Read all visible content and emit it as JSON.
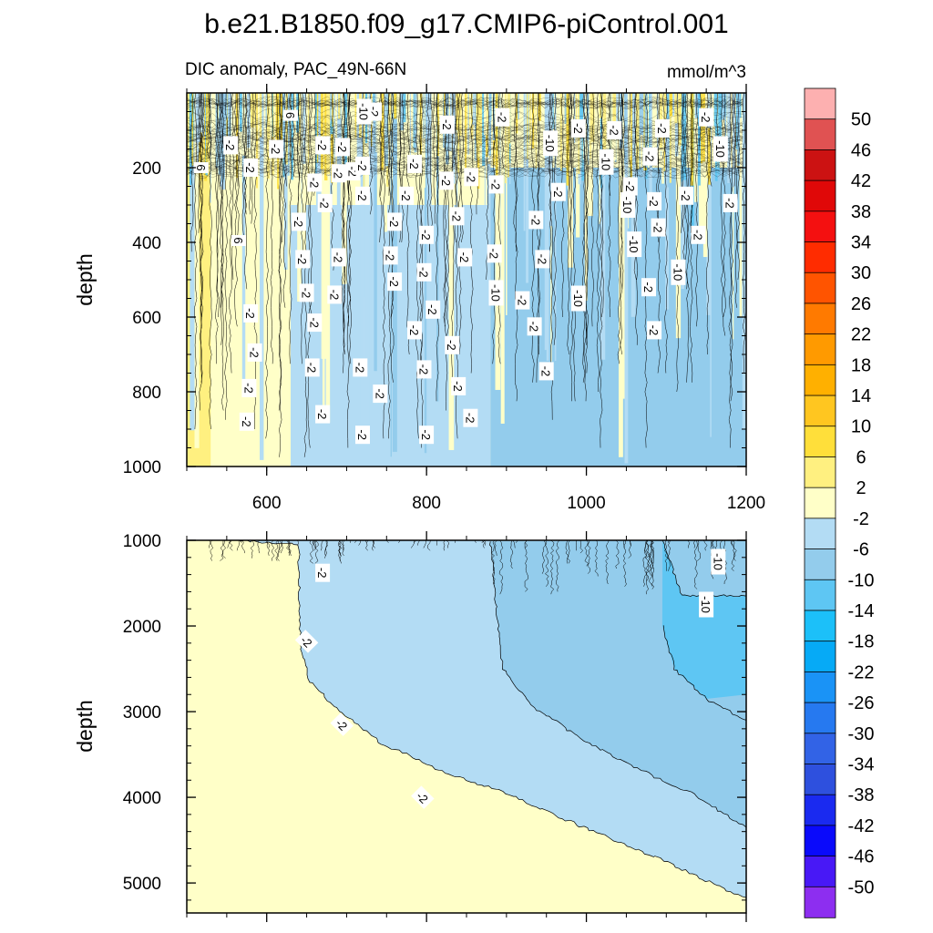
{
  "figure": {
    "title": "b.e21.B1850.f09_g17.CMIP6-piControl.001",
    "subtitle_left": "DIC anomaly, PAC_49N-66N",
    "subtitle_right": "mmol/m^3"
  },
  "chart_data": [
    {
      "type": "contour",
      "panel": "upper",
      "title": "DIC anomaly, PAC_49N-66N",
      "units": "mmol/m^3",
      "xlabel": "",
      "ylabel": "depth",
      "xlim": [
        500,
        1200
      ],
      "ylim": [
        0,
        1000
      ],
      "y_inverted": true,
      "xticks": [
        600,
        800,
        1000,
        1200
      ],
      "yticks": [
        200,
        400,
        600,
        800,
        1000
      ],
      "regions": [
        {
          "band": "2 to 6",
          "x_range": [
            500,
            530
          ],
          "depth_range": [
            0,
            1000
          ]
        },
        {
          "band": "-2 to 2",
          "x_range": [
            530,
            630
          ],
          "depth_range": [
            0,
            1000
          ]
        },
        {
          "band": "-2 to 2",
          "x_range": [
            630,
            720
          ],
          "depth_range": [
            0,
            550
          ]
        },
        {
          "band": "-6 to -2",
          "x_range": [
            630,
            880
          ],
          "depth_range": [
            300,
            1000
          ]
        },
        {
          "band": "-10 to -6",
          "x_range": [
            880,
            1200
          ],
          "depth_range": [
            200,
            1000
          ]
        }
      ],
      "contour_labels": [
        {
          "text": "6",
          "x": 518,
          "y": 200
        },
        {
          "text": "6",
          "x": 565,
          "y": 395
        },
        {
          "text": "6",
          "x": 630,
          "y": 60
        },
        {
          "text": "-2",
          "x": 555,
          "y": 140
        },
        {
          "text": "-2",
          "x": 580,
          "y": 200
        },
        {
          "text": "-2",
          "x": 612,
          "y": 150
        },
        {
          "text": "-2",
          "x": 670,
          "y": 140
        },
        {
          "text": "-2",
          "x": 660,
          "y": 240
        },
        {
          "text": "-2",
          "x": 690,
          "y": 215
        },
        {
          "text": "-2",
          "x": 708,
          "y": 210
        },
        {
          "text": "-2",
          "x": 735,
          "y": 50
        },
        {
          "text": "-10",
          "x": 722,
          "y": 50
        },
        {
          "text": "-2",
          "x": 695,
          "y": 145
        },
        {
          "text": "-2",
          "x": 720,
          "y": 195
        },
        {
          "text": "-2",
          "x": 720,
          "y": 275
        },
        {
          "text": "-2",
          "x": 673,
          "y": 295
        },
        {
          "text": "-2",
          "x": 640,
          "y": 345
        },
        {
          "text": "-2",
          "x": 645,
          "y": 445
        },
        {
          "text": "-2",
          "x": 690,
          "y": 440
        },
        {
          "text": "-2",
          "x": 685,
          "y": 540
        },
        {
          "text": "-2",
          "x": 650,
          "y": 535
        },
        {
          "text": "-2",
          "x": 660,
          "y": 615
        },
        {
          "text": "-2",
          "x": 580,
          "y": 590
        },
        {
          "text": "-2",
          "x": 585,
          "y": 695
        },
        {
          "text": "-2",
          "x": 578,
          "y": 790
        },
        {
          "text": "-2",
          "x": 575,
          "y": 880
        },
        {
          "text": "-2",
          "x": 657,
          "y": 735
        },
        {
          "text": "-2",
          "x": 670,
          "y": 860
        },
        {
          "text": "-2",
          "x": 717,
          "y": 735
        },
        {
          "text": "-2",
          "x": 742,
          "y": 805
        },
        {
          "text": "-2",
          "x": 720,
          "y": 915
        },
        {
          "text": "-2",
          "x": 760,
          "y": 345
        },
        {
          "text": "-2",
          "x": 755,
          "y": 435
        },
        {
          "text": "-2",
          "x": 760,
          "y": 505
        },
        {
          "text": "-2",
          "x": 775,
          "y": 275
        },
        {
          "text": "-2",
          "x": 785,
          "y": 190
        },
        {
          "text": "-2",
          "x": 800,
          "y": 380
        },
        {
          "text": "-2",
          "x": 797,
          "y": 480
        },
        {
          "text": "-2",
          "x": 808,
          "y": 580
        },
        {
          "text": "-2",
          "x": 785,
          "y": 635
        },
        {
          "text": "-2",
          "x": 797,
          "y": 740
        },
        {
          "text": "-2",
          "x": 800,
          "y": 915
        },
        {
          "text": "-2",
          "x": 826,
          "y": 85
        },
        {
          "text": "-2",
          "x": 825,
          "y": 235
        },
        {
          "text": "-2",
          "x": 838,
          "y": 330
        },
        {
          "text": "-2",
          "x": 848,
          "y": 440
        },
        {
          "text": "-2",
          "x": 832,
          "y": 675
        },
        {
          "text": "-2",
          "x": 840,
          "y": 785
        },
        {
          "text": "-2",
          "x": 856,
          "y": 225
        },
        {
          "text": "-2",
          "x": 855,
          "y": 870
        },
        {
          "text": "-2",
          "x": 895,
          "y": 65
        },
        {
          "text": "-2",
          "x": 887,
          "y": 245
        },
        {
          "text": "-2",
          "x": 885,
          "y": 430
        },
        {
          "text": "-10",
          "x": 887,
          "y": 535
        },
        {
          "text": "-2",
          "x": 920,
          "y": 555
        },
        {
          "text": "-2",
          "x": 937,
          "y": 340
        },
        {
          "text": "-2",
          "x": 945,
          "y": 445
        },
        {
          "text": "-2",
          "x": 935,
          "y": 625
        },
        {
          "text": "-2",
          "x": 950,
          "y": 745
        },
        {
          "text": "-10",
          "x": 955,
          "y": 135
        },
        {
          "text": "-2",
          "x": 965,
          "y": 265
        },
        {
          "text": "-2",
          "x": 990,
          "y": 95
        },
        {
          "text": "-10",
          "x": 990,
          "y": 550
        },
        {
          "text": "-10",
          "x": 1025,
          "y": 185
        },
        {
          "text": "-2",
          "x": 1035,
          "y": 100
        },
        {
          "text": "-10",
          "x": 1052,
          "y": 300
        },
        {
          "text": "-10",
          "x": 1060,
          "y": 405
        },
        {
          "text": "-2",
          "x": 1055,
          "y": 250
        },
        {
          "text": "-2",
          "x": 1080,
          "y": 170
        },
        {
          "text": "-2",
          "x": 1085,
          "y": 290
        },
        {
          "text": "-2",
          "x": 1090,
          "y": 360
        },
        {
          "text": "-2",
          "x": 1078,
          "y": 520
        },
        {
          "text": "-2",
          "x": 1085,
          "y": 635
        },
        {
          "text": "-2",
          "x": 1095,
          "y": 95
        },
        {
          "text": "-10",
          "x": 1115,
          "y": 480
        },
        {
          "text": "-2",
          "x": 1125,
          "y": 275
        },
        {
          "text": "-2",
          "x": 1140,
          "y": 380
        },
        {
          "text": "-2",
          "x": 1150,
          "y": 65
        },
        {
          "text": "-10",
          "x": 1168,
          "y": 150
        },
        {
          "text": "-2",
          "x": 1180,
          "y": 295
        }
      ]
    },
    {
      "type": "contour",
      "panel": "lower",
      "xlabel": "",
      "ylabel": "depth",
      "xlim": [
        500,
        1200
      ],
      "ylim": [
        1000,
        5350
      ],
      "y_inverted": true,
      "yticks": [
        1000,
        2000,
        3000,
        4000,
        5000
      ],
      "boundaries": [
        {
          "level": -2,
          "points": [
            [
              560,
              1000
            ],
            [
              640,
              1050
            ],
            [
              642,
              2200
            ],
            [
              652,
              2620
            ],
            [
              680,
              2900
            ],
            [
              740,
              3350
            ],
            [
              820,
              3700
            ],
            [
              900,
              3950
            ],
            [
              1000,
              4370
            ],
            [
              1100,
              4750
            ],
            [
              1180,
              5100
            ],
            [
              1200,
              5170
            ]
          ]
        },
        {
          "level": -6,
          "points": [
            [
              880,
              1000
            ],
            [
              888,
              1900
            ],
            [
              895,
              2500
            ],
            [
              935,
              2950
            ],
            [
              1000,
              3350
            ],
            [
              1060,
              3650
            ],
            [
              1130,
              3950
            ],
            [
              1200,
              4350
            ]
          ]
        },
        {
          "level": -10,
          "points": [
            [
              1095,
              1000
            ],
            [
              1120,
              1650
            ],
            [
              1200,
              1650
            ]
          ]
        },
        {
          "level": -10,
          "points": [
            [
              1095,
              2000
            ],
            [
              1110,
              2500
            ],
            [
              1150,
              2850
            ],
            [
              1200,
              3100
            ]
          ]
        }
      ],
      "contour_labels": [
        {
          "text": "-2",
          "x": 670,
          "y": 1380
        },
        {
          "text": "-2",
          "x": 650,
          "y": 2180
        },
        {
          "text": "-2",
          "x": 694,
          "y": 3150
        },
        {
          "text": "-2",
          "x": 795,
          "y": 4000
        },
        {
          "text": "-10",
          "x": 1165,
          "y": 1250
        },
        {
          "text": "-10",
          "x": 1150,
          "y": 1750
        }
      ]
    }
  ],
  "colorbar": {
    "labels": [
      "50",
      "46",
      "42",
      "38",
      "34",
      "30",
      "26",
      "22",
      "18",
      "14",
      "10",
      "6",
      "2",
      "-2",
      "-6",
      "-10",
      "-14",
      "-18",
      "-22",
      "-26",
      "-30",
      "-34",
      "-38",
      "-42",
      "-46",
      "-50"
    ],
    "colors": [
      "#FDB0B0",
      "#E05252",
      "#CC1212",
      "#E00808",
      "#F41010",
      "#FF2C00",
      "#FF5400",
      "#FF7A00",
      "#FF9A00",
      "#FFB000",
      "#FFC620",
      "#FFDF3A",
      "#FFF080",
      "#FFFFC8",
      "#B3DCF4",
      "#93CCEC",
      "#5EC6F3",
      "#1CC0F9",
      "#06AAF6",
      "#1A93F6",
      "#2679F0",
      "#3263E6",
      "#2E50DE",
      "#1A2AF0",
      "#0A0AFB",
      "#4818F6",
      "#8D2EF0"
    ]
  },
  "palette": {
    "pos2": "#FFF080",
    "neutral": "#FFFFC8",
    "neg2": "#B3DCF4",
    "neg6": "#93CCEC",
    "neg10": "#5EC6F3"
  }
}
